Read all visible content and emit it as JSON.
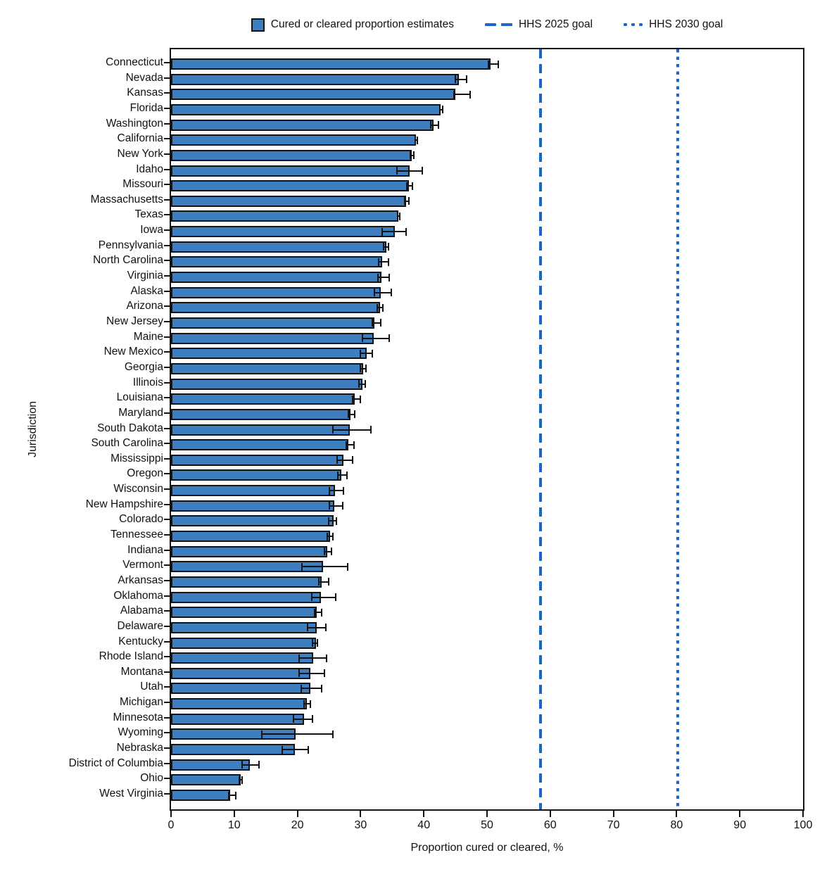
{
  "colors": {
    "bar_fill": "#3C7EC0",
    "bar_outline": "#141414",
    "goal_line": "#1B66C9",
    "axis": "#141414",
    "text": "#111111"
  },
  "chart_data": {
    "type": "bar",
    "orientation": "horizontal",
    "title": "",
    "xlabel": "Proportion cured or cleared, %",
    "ylabel": "Jurisdiction",
    "xlim": [
      0,
      100
    ],
    "xticks": [
      0,
      10,
      20,
      30,
      40,
      50,
      60,
      70,
      80,
      90,
      100
    ],
    "grid": false,
    "legend_position": "top",
    "legend": {
      "series": "Cured or cleared proportion estimates",
      "goal_2025": "HHS 2025 goal",
      "goal_2030": "HHS 2030 goal"
    },
    "goals": [
      {
        "name": "HHS 2025 goal",
        "value": 58.5,
        "style": "dashed"
      },
      {
        "name": "HHS 2030 goal",
        "value": 80.2,
        "style": "dotted"
      }
    ],
    "series_name": "Cured or cleared proportion estimates",
    "points": [
      {
        "jurisdiction": "Connecticut",
        "value": 50.6,
        "ci_low": 50.2,
        "ci_high": 51.8
      },
      {
        "jurisdiction": "Nevada",
        "value": 45.6,
        "ci_low": 45.0,
        "ci_high": 46.8
      },
      {
        "jurisdiction": "Kansas",
        "value": 45.0,
        "ci_low": 44.8,
        "ci_high": 47.3
      },
      {
        "jurisdiction": "Florida",
        "value": 42.7,
        "ci_low": 42.5,
        "ci_high": 43.0
      },
      {
        "jurisdiction": "Washington",
        "value": 41.5,
        "ci_low": 41.1,
        "ci_high": 42.3
      },
      {
        "jurisdiction": "California",
        "value": 38.8,
        "ci_low": 38.6,
        "ci_high": 39.0
      },
      {
        "jurisdiction": "New York",
        "value": 38.1,
        "ci_low": 37.9,
        "ci_high": 38.4
      },
      {
        "jurisdiction": "Idaho",
        "value": 37.8,
        "ci_low": 35.7,
        "ci_high": 39.8
      },
      {
        "jurisdiction": "Missouri",
        "value": 37.6,
        "ci_low": 37.3,
        "ci_high": 38.2
      },
      {
        "jurisdiction": "Massachusetts",
        "value": 37.2,
        "ci_low": 37.0,
        "ci_high": 37.6
      },
      {
        "jurisdiction": "Texas",
        "value": 36.0,
        "ci_low": 35.9,
        "ci_high": 36.2
      },
      {
        "jurisdiction": "Iowa",
        "value": 35.4,
        "ci_low": 33.4,
        "ci_high": 37.2
      },
      {
        "jurisdiction": "Pennsylvania",
        "value": 34.1,
        "ci_low": 33.6,
        "ci_high": 34.4
      },
      {
        "jurisdiction": "North Carolina",
        "value": 33.4,
        "ci_low": 32.9,
        "ci_high": 34.4
      },
      {
        "jurisdiction": "Virginia",
        "value": 33.3,
        "ci_low": 32.7,
        "ci_high": 34.5
      },
      {
        "jurisdiction": "Alaska",
        "value": 33.2,
        "ci_low": 32.2,
        "ci_high": 34.8
      },
      {
        "jurisdiction": "Arizona",
        "value": 33.1,
        "ci_low": 32.6,
        "ci_high": 33.5
      },
      {
        "jurisdiction": "New Jersey",
        "value": 32.2,
        "ci_low": 31.8,
        "ci_high": 33.2
      },
      {
        "jurisdiction": "Maine",
        "value": 32.1,
        "ci_low": 30.3,
        "ci_high": 34.5
      },
      {
        "jurisdiction": "New Mexico",
        "value": 31.0,
        "ci_low": 30.0,
        "ci_high": 31.8
      },
      {
        "jurisdiction": "Georgia",
        "value": 30.4,
        "ci_low": 29.9,
        "ci_high": 30.8
      },
      {
        "jurisdiction": "Illinois",
        "value": 30.3,
        "ci_low": 29.7,
        "ci_high": 30.7
      },
      {
        "jurisdiction": "Louisiana",
        "value": 29.1,
        "ci_low": 28.7,
        "ci_high": 29.9
      },
      {
        "jurisdiction": "Maryland",
        "value": 28.4,
        "ci_low": 28.1,
        "ci_high": 29.1
      },
      {
        "jurisdiction": "South Dakota",
        "value": 28.3,
        "ci_low": 25.6,
        "ci_high": 31.6
      },
      {
        "jurisdiction": "South Carolina",
        "value": 28.1,
        "ci_low": 27.7,
        "ci_high": 29.0
      },
      {
        "jurisdiction": "Mississippi",
        "value": 27.3,
        "ci_low": 26.3,
        "ci_high": 28.7
      },
      {
        "jurisdiction": "Oregon",
        "value": 27.0,
        "ci_low": 26.4,
        "ci_high": 27.8
      },
      {
        "jurisdiction": "Wisconsin",
        "value": 25.9,
        "ci_low": 25.1,
        "ci_high": 27.3
      },
      {
        "jurisdiction": "New Hampshire",
        "value": 25.8,
        "ci_low": 25.0,
        "ci_high": 27.2
      },
      {
        "jurisdiction": "Colorado",
        "value": 25.7,
        "ci_low": 24.9,
        "ci_high": 26.2
      },
      {
        "jurisdiction": "Tennessee",
        "value": 25.2,
        "ci_low": 24.7,
        "ci_high": 25.6
      },
      {
        "jurisdiction": "Indiana",
        "value": 24.7,
        "ci_low": 24.3,
        "ci_high": 25.4
      },
      {
        "jurisdiction": "Vermont",
        "value": 24.1,
        "ci_low": 20.7,
        "ci_high": 28.0
      },
      {
        "jurisdiction": "Arkansas",
        "value": 23.8,
        "ci_low": 23.4,
        "ci_high": 24.9
      },
      {
        "jurisdiction": "Oklahoma",
        "value": 23.7,
        "ci_low": 22.3,
        "ci_high": 26.1
      },
      {
        "jurisdiction": "Alabama",
        "value": 23.1,
        "ci_low": 22.7,
        "ci_high": 23.8
      },
      {
        "jurisdiction": "Delaware",
        "value": 23.0,
        "ci_low": 21.6,
        "ci_high": 24.5
      },
      {
        "jurisdiction": "Kentucky",
        "value": 22.9,
        "ci_low": 22.4,
        "ci_high": 23.2
      },
      {
        "jurisdiction": "Rhode Island",
        "value": 22.5,
        "ci_low": 20.3,
        "ci_high": 24.6
      },
      {
        "jurisdiction": "Montana",
        "value": 22.1,
        "ci_low": 20.3,
        "ci_high": 24.3
      },
      {
        "jurisdiction": "Utah",
        "value": 22.0,
        "ci_low": 20.6,
        "ci_high": 23.8
      },
      {
        "jurisdiction": "Michigan",
        "value": 21.5,
        "ci_low": 21.0,
        "ci_high": 22.0
      },
      {
        "jurisdiction": "Minnesota",
        "value": 21.1,
        "ci_low": 19.4,
        "ci_high": 22.4
      },
      {
        "jurisdiction": "Wyoming",
        "value": 19.7,
        "ci_low": 14.4,
        "ci_high": 25.6
      },
      {
        "jurisdiction": "Nebraska",
        "value": 19.6,
        "ci_low": 17.6,
        "ci_high": 21.7
      },
      {
        "jurisdiction": "District of Columbia",
        "value": 12.5,
        "ci_low": 11.3,
        "ci_high": 13.9
      },
      {
        "jurisdiction": "Ohio",
        "value": 11.0,
        "ci_low": 10.8,
        "ci_high": 11.2
      },
      {
        "jurisdiction": "West Virginia",
        "value": 9.3,
        "ci_low": 9.1,
        "ci_high": 10.2
      }
    ]
  }
}
